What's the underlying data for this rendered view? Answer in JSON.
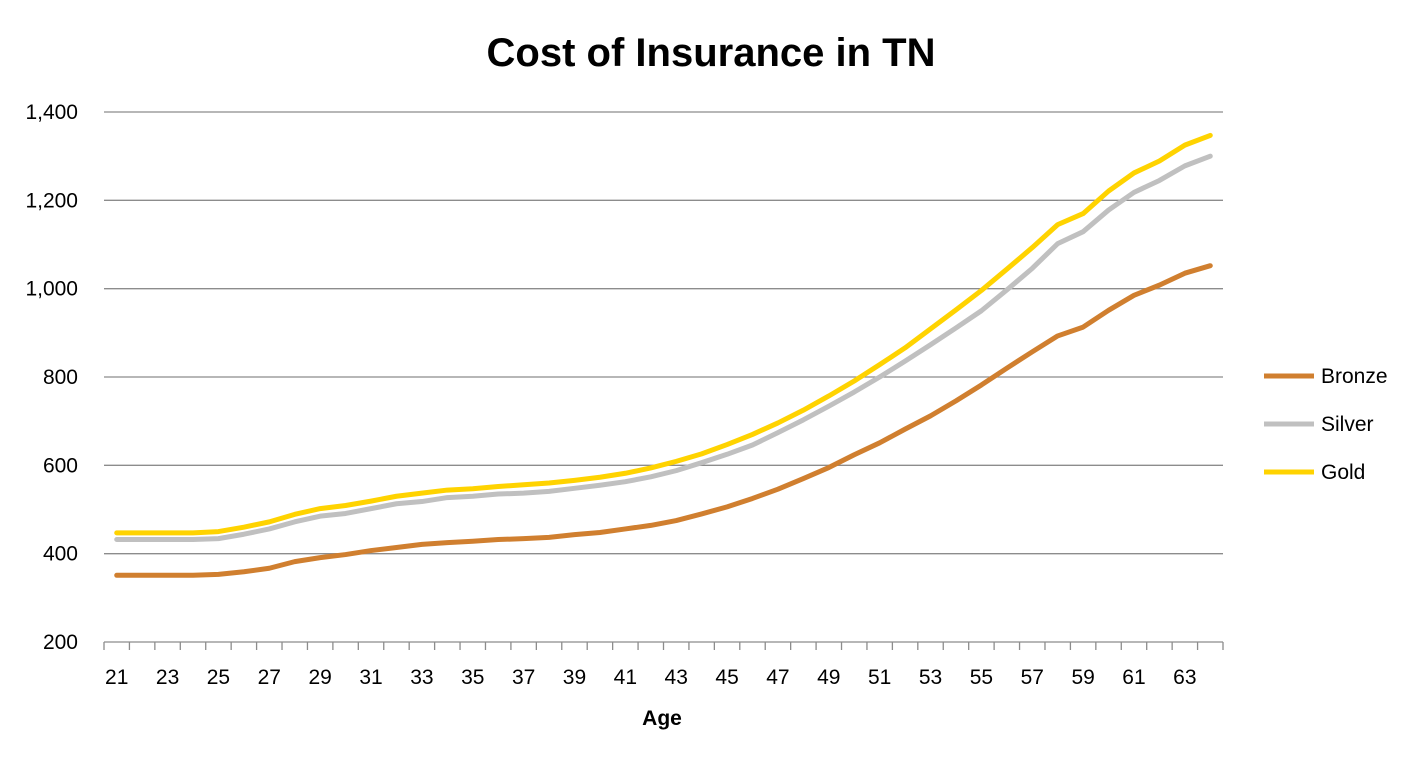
{
  "chart_data": {
    "type": "line",
    "title": "Cost of Insurance in TN",
    "xlabel": "Age",
    "ylabel": "",
    "ylim": [
      200,
      1400
    ],
    "y_ticks": [
      200,
      400,
      600,
      800,
      1000,
      1200,
      1400
    ],
    "y_tick_labels": [
      "200",
      "400",
      "600",
      "800",
      "1,000",
      "1,200",
      "1,400"
    ],
    "x": [
      21,
      22,
      23,
      24,
      25,
      26,
      27,
      28,
      29,
      30,
      31,
      32,
      33,
      34,
      35,
      36,
      37,
      38,
      39,
      40,
      41,
      42,
      43,
      44,
      45,
      46,
      47,
      48,
      49,
      50,
      51,
      52,
      53,
      54,
      55,
      56,
      57,
      58,
      59,
      60,
      61,
      62,
      63,
      64
    ],
    "x_tick_labels": [
      "21",
      "23",
      "25",
      "27",
      "29",
      "31",
      "33",
      "35",
      "37",
      "39",
      "41",
      "43",
      "45",
      "47",
      "49",
      "51",
      "53",
      "55",
      "57",
      "59",
      "61",
      "63"
    ],
    "grid": true,
    "legend_position": "right",
    "series": [
      {
        "name": "Bronze",
        "color": "#D07F2F",
        "values": [
          351,
          351,
          351,
          351,
          353,
          359,
          367,
          382,
          391,
          398,
          407,
          414,
          421,
          425,
          428,
          432,
          434,
          437,
          443,
          448,
          456,
          464,
          475,
          490,
          506,
          525,
          546,
          570,
          595,
          624,
          651,
          682,
          712,
          746,
          782,
          820,
          857,
          893,
          913,
          951,
          985,
          1008,
          1035,
          1052
        ]
      },
      {
        "name": "Silver",
        "color": "#C0C0C0",
        "values": [
          432,
          432,
          432,
          432,
          434,
          444,
          456,
          472,
          485,
          491,
          502,
          513,
          518,
          527,
          530,
          535,
          537,
          541,
          548,
          555,
          563,
          574,
          588,
          606,
          625,
          646,
          674,
          703,
          734,
          766,
          800,
          836,
          873,
          911,
          950,
          997,
          1046,
          1102,
          1129,
          1178,
          1218,
          1245,
          1278,
          1300
        ]
      },
      {
        "name": "Gold",
        "color": "#FFD300",
        "values": [
          447,
          447,
          447,
          447,
          450,
          460,
          472,
          489,
          502,
          509,
          519,
          530,
          537,
          544,
          547,
          552,
          556,
          560,
          566,
          573,
          582,
          594,
          609,
          626,
          647,
          670,
          696,
          725,
          757,
          791,
          828,
          866,
          909,
          952,
          996,
          1044,
          1093,
          1145,
          1170,
          1221,
          1262,
          1289,
          1325,
          1347
        ]
      }
    ]
  }
}
